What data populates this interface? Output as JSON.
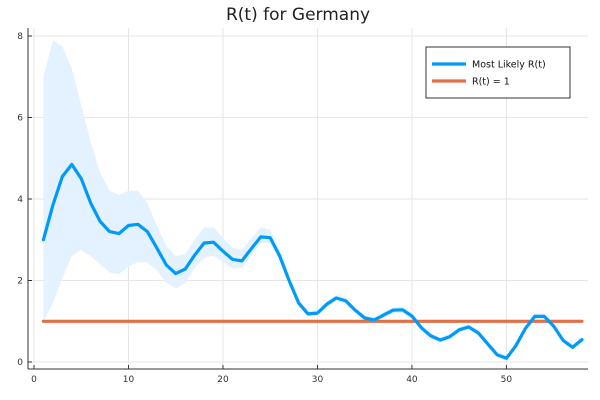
{
  "chart_data": {
    "type": "line",
    "title": "R(t) for Germany",
    "xlabel": "",
    "ylabel": "",
    "xlim": [
      0,
      58
    ],
    "ylim": [
      0,
      8
    ],
    "xticks": [
      0,
      10,
      20,
      30,
      40,
      50
    ],
    "yticks": [
      0,
      2,
      4,
      6,
      8
    ],
    "grid": true,
    "legend_position": "top-right",
    "series": [
      {
        "name": "Most Likely R(t)",
        "color": "#009AFA",
        "band_color": "#E3F2FE",
        "x": [
          1,
          2,
          3,
          4,
          5,
          6,
          7,
          8,
          9,
          10,
          11,
          12,
          13,
          14,
          15,
          16,
          17,
          18,
          19,
          20,
          21,
          22,
          23,
          24,
          25,
          26,
          27,
          28,
          29,
          30,
          31,
          32,
          33,
          34,
          35,
          36,
          37,
          38,
          39,
          40,
          41,
          42,
          43,
          44,
          45,
          46,
          47,
          48,
          49,
          50,
          51,
          52,
          53,
          54,
          55,
          56,
          57,
          58
        ],
        "values": [
          3.0,
          3.85,
          4.55,
          4.85,
          4.5,
          3.9,
          3.45,
          3.2,
          3.15,
          3.35,
          3.38,
          3.2,
          2.8,
          2.38,
          2.17,
          2.28,
          2.62,
          2.92,
          2.94,
          2.72,
          2.52,
          2.48,
          2.78,
          3.07,
          3.05,
          2.6,
          2.0,
          1.45,
          1.18,
          1.2,
          1.42,
          1.57,
          1.5,
          1.27,
          1.08,
          1.03,
          1.15,
          1.27,
          1.28,
          1.13,
          0.84,
          0.64,
          0.54,
          0.62,
          0.79,
          0.86,
          0.72,
          0.45,
          0.18,
          0.09,
          0.4,
          0.82,
          1.12,
          1.12,
          0.88,
          0.53,
          0.36,
          0.55
        ],
        "lower": [
          1.0,
          1.45,
          2.05,
          2.6,
          2.75,
          2.6,
          2.4,
          2.2,
          2.15,
          2.35,
          2.45,
          2.45,
          2.25,
          1.95,
          1.8,
          1.95,
          2.3,
          2.55,
          2.62,
          2.45,
          2.3,
          2.3,
          2.6,
          2.92,
          2.92,
          2.5,
          1.9,
          1.37,
          1.12,
          1.13,
          1.35,
          1.5,
          1.43,
          1.2,
          1.01,
          0.97,
          1.08,
          1.2,
          1.21,
          1.06,
          0.78,
          0.58,
          0.48,
          0.56,
          0.72,
          0.8,
          0.66,
          0.39,
          0.13,
          0.04,
          0.34,
          0.76,
          1.05,
          1.05,
          0.82,
          0.47,
          0.3,
          0.49
        ],
        "upper": [
          7.0,
          7.9,
          7.75,
          7.2,
          6.3,
          5.4,
          4.65,
          4.2,
          4.1,
          4.2,
          4.2,
          3.9,
          3.35,
          2.85,
          2.6,
          2.65,
          3.0,
          3.3,
          3.3,
          3.05,
          2.8,
          2.75,
          3.03,
          3.3,
          3.25,
          2.75,
          2.12,
          1.55,
          1.26,
          1.28,
          1.5,
          1.66,
          1.58,
          1.34,
          1.15,
          1.1,
          1.22,
          1.35,
          1.36,
          1.2,
          0.91,
          0.7,
          0.6,
          0.69,
          0.86,
          0.93,
          0.79,
          0.52,
          0.25,
          0.16,
          0.48,
          0.9,
          1.2,
          1.2,
          0.95,
          0.6,
          0.43,
          0.62
        ]
      },
      {
        "name": "R(t) = 1",
        "color": "#E26F46",
        "x": [
          1,
          58
        ],
        "values": [
          1,
          1
        ]
      }
    ]
  }
}
